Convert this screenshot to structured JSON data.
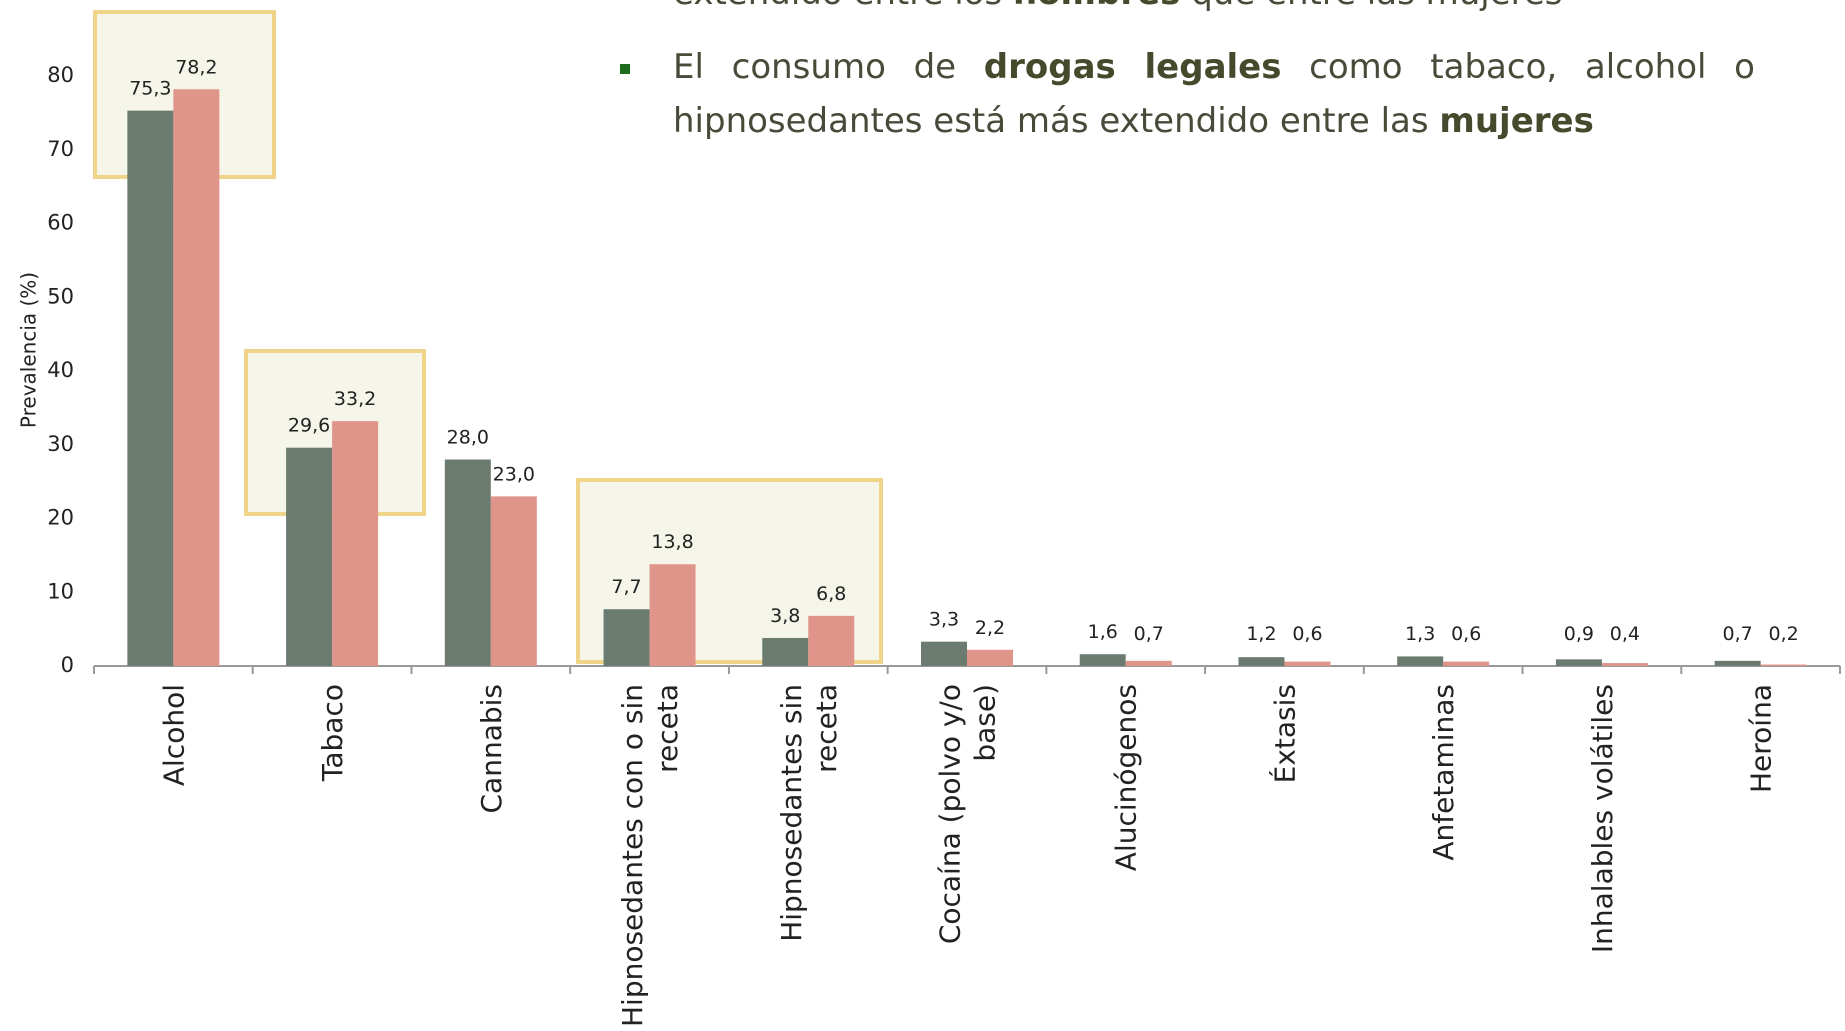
{
  "chart_data": {
    "type": "bar",
    "y_label": "Prevalencia (%)",
    "categories": [
      "Alcohol",
      "Tabaco",
      "Cannabis",
      "Hipnosedantes con o sin receta",
      "Hipnosedantes sin receta",
      "Cocaína (polvo y/o base)",
      "Alucinógenos",
      "Éxtasis",
      "Anfetaminas",
      "Inhalables volátiles",
      "Heroína"
    ],
    "series": [
      {
        "color": "#6b7b70",
        "values": [
          75.3,
          29.6,
          28.0,
          7.7,
          3.8,
          3.3,
          1.6,
          1.2,
          1.3,
          0.9,
          0.7
        ],
        "value_labels": [
          "75,3",
          "29,6",
          "28,0",
          "7,7",
          "3,8",
          "3,3",
          "1,6",
          "1,2",
          "1,3",
          "0,9",
          "0,7"
        ]
      },
      {
        "color": "#e0958b",
        "values": [
          78.2,
          33.2,
          23.0,
          13.8,
          6.8,
          2.2,
          0.7,
          0.6,
          0.6,
          0.4,
          0.2
        ],
        "value_labels": [
          "78,2",
          "33,2",
          "23,0",
          "13,8",
          "6,8",
          "2,2",
          "0,7",
          "0,6",
          "0,6",
          "0,4",
          "0,2"
        ]
      }
    ],
    "ylim": [
      0,
      80
    ],
    "yticks": [
      0,
      10,
      20,
      30,
      40,
      50,
      60,
      70,
      80
    ],
    "grid": false
  },
  "bullets": [
    {
      "segments": [
        {
          "text": "extendido entre los "
        },
        {
          "text": "hombres",
          "bold": true
        },
        {
          "text": " que entre las mujeres"
        }
      ]
    },
    {
      "segments": [
        {
          "text": "El consumo de "
        },
        {
          "text": "drogas legales",
          "bold": true
        },
        {
          "text": " como tabaco, alcohol o hipnosedantes está más extendido entre las "
        },
        {
          "text": "mujeres",
          "bold": true
        }
      ]
    }
  ]
}
